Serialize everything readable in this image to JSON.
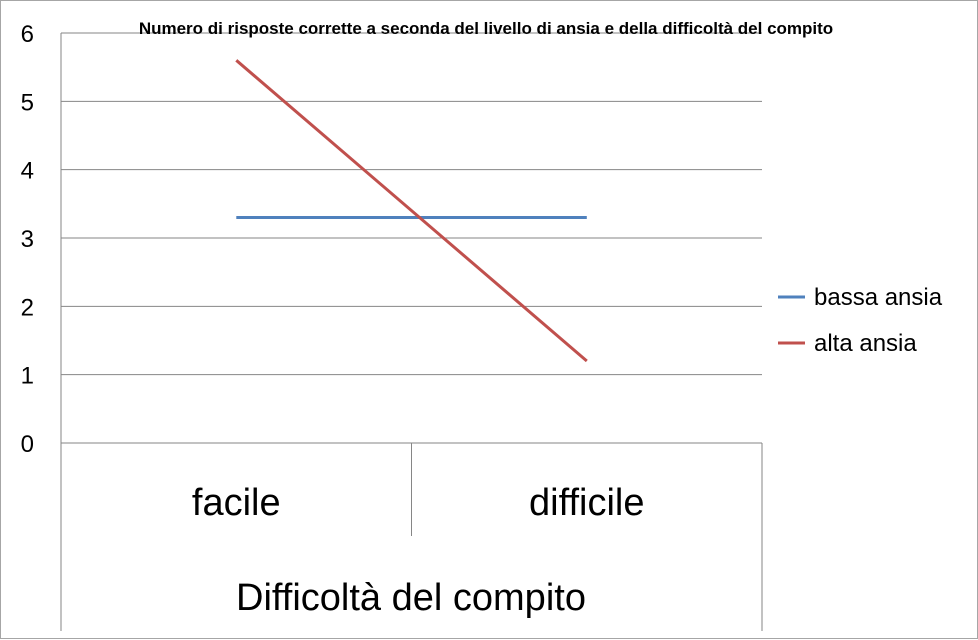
{
  "chart_data": {
    "type": "line",
    "title": "Numero di risposte corrette a seconda del livello di ansia e della difficoltà del compito",
    "xlabel": "Difficoltà del compito",
    "ylabel": "",
    "categories": [
      "facile",
      "difficile"
    ],
    "ylim": [
      0,
      6
    ],
    "yticks": [
      "0",
      "1",
      "2",
      "3",
      "4",
      "5",
      "6"
    ],
    "grid": true,
    "legend_position": "right",
    "series": [
      {
        "name": "bassa ansia",
        "values": [
          3.3,
          3.3
        ],
        "color": "#4f81bd"
      },
      {
        "name": "alta ansia",
        "values": [
          5.6,
          1.2
        ],
        "color": "#c0504d"
      }
    ]
  }
}
